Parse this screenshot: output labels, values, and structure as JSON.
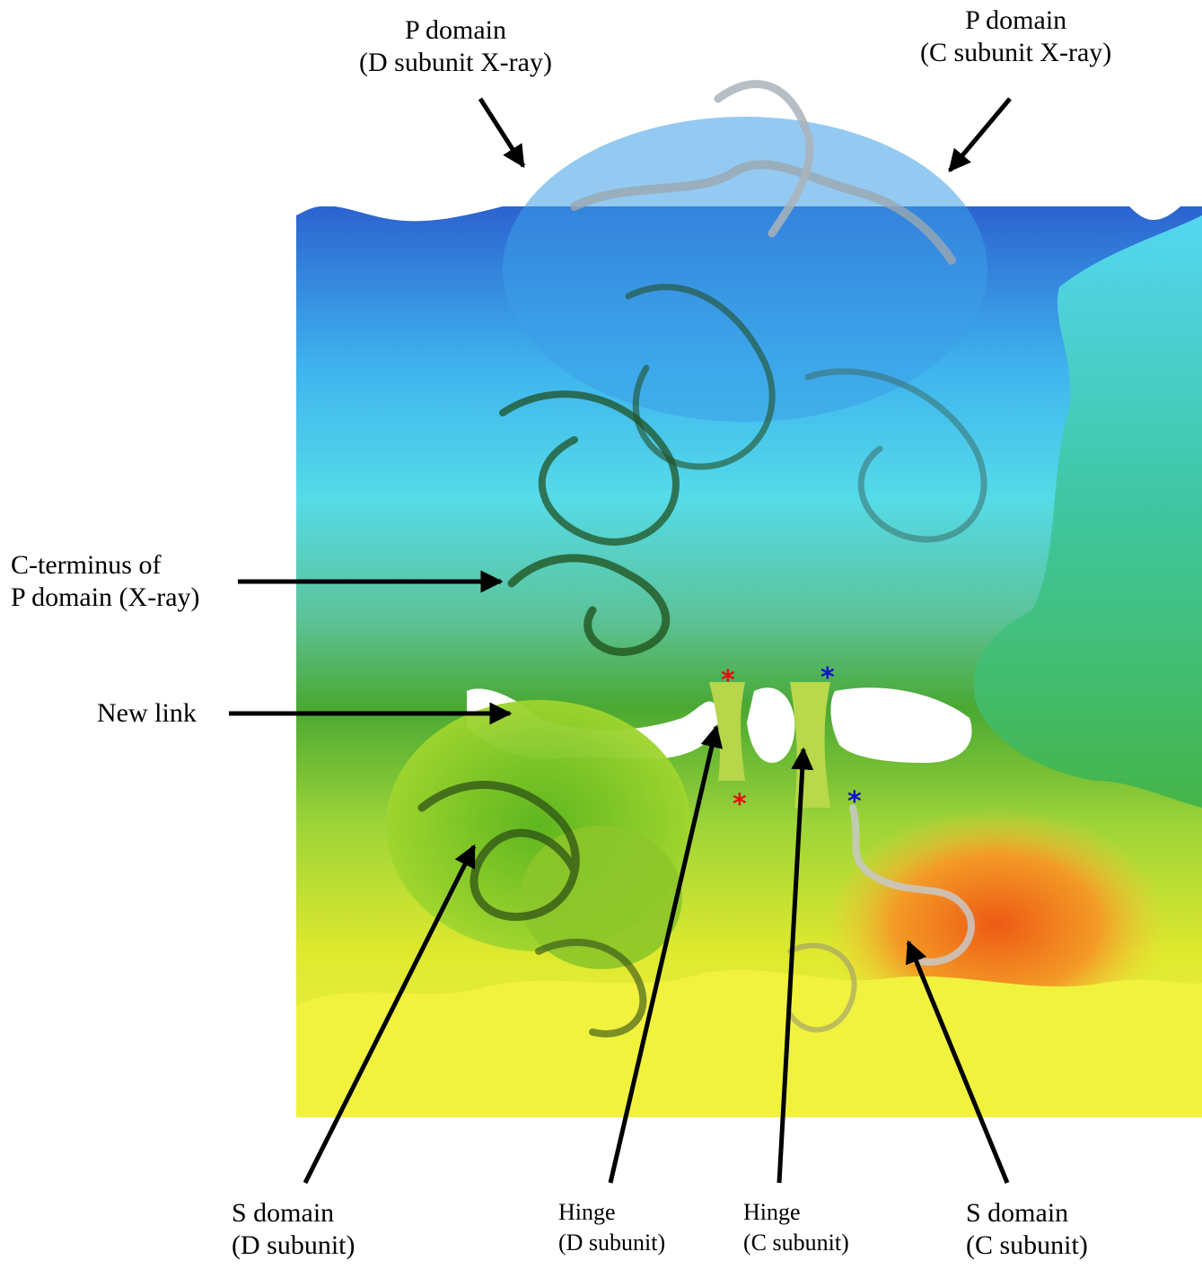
{
  "labels": {
    "p_domain_d": {
      "line1": "P domain",
      "line2": "(D subunit X-ray)"
    },
    "p_domain_c": {
      "line1": "P domain",
      "line2": "(C subunit X-ray)"
    },
    "c_terminus": {
      "line1": "C-terminus of",
      "line2": "P domain (X-ray)"
    },
    "new_link": {
      "line1": "New link"
    },
    "s_domain_d": {
      "line1": "S domain",
      "line2": "(D subunit)"
    },
    "hinge_d": {
      "line1": "Hinge",
      "line2": "(D subunit)"
    },
    "hinge_c": {
      "line1": "Hinge",
      "line2": "(C subunit)"
    },
    "s_domain_c": {
      "line1": "S domain",
      "line2": "(C subunit)"
    }
  },
  "markers": {
    "asterisk": "*",
    "colors": {
      "red": "#e01010",
      "blue": "#1010d0"
    }
  },
  "colors": {
    "map_top": "#2f6fd6",
    "map_cyan": "#4fd3f0",
    "map_green": "#4fae2a",
    "map_yellow": "#e8ee2a",
    "map_orange": "#ef7a1c",
    "ribbon": "#1f4a1a",
    "arrow": "#000000"
  }
}
